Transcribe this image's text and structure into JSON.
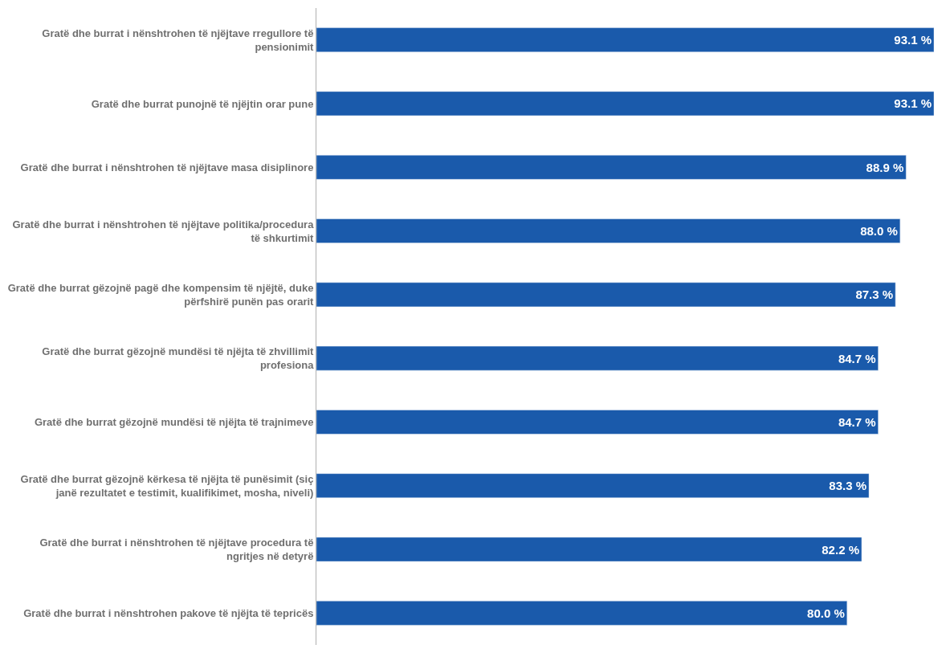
{
  "chart_data": {
    "type": "bar",
    "orientation": "horizontal",
    "tick_labels": "y",
    "legend": false,
    "color": "#1a5aab",
    "categories": [
      "Gratë dhe burrat i nënshtrohen të njëjtave rregullore të pensionimit",
      "Gratë dhe burrat punojnë të njëjtin orar pune",
      "Gratë dhe burrat i nënshtrohen të njëjtave masa disiplinore",
      "Gratë dhe burrat i nënshtrohen të njëjtave politika/procedura të shkurtimit",
      "Gratë dhe burrat gëzojnë pagë dhe kompensim të njëjtë, duke përfshirë punën pas orarit",
      "Gratë dhe burrat gëzojnë mundësi të njëjta të zhvillimit profesiona",
      "Gratë dhe burrat gëzojnë mundësi të njëjta të trajnimeve",
      "Gratë dhe burrat gëzojnë kërkesa të njëjta të punësimit (siç janë rezultatet e testimit, kualifikimet, mosha, niveli)",
      "Gratë dhe burrat i nënshtrohen të njëjtave procedura të ngritjes në detyrë",
      "Gratë dhe burrat i nënshtrohen pakove të njëjta të tepricës"
    ],
    "values": [
      93.1,
      93.1,
      88.9,
      88.0,
      87.3,
      84.7,
      84.7,
      83.3,
      82.2,
      80.0
    ],
    "value_labels": [
      "93.1 %",
      "93.1 %",
      "88.9 %",
      "88.0 %",
      "87.3 %",
      "84.7 %",
      "84.7 %",
      "83.3 %",
      "82.2 %",
      "80.0 %"
    ]
  }
}
